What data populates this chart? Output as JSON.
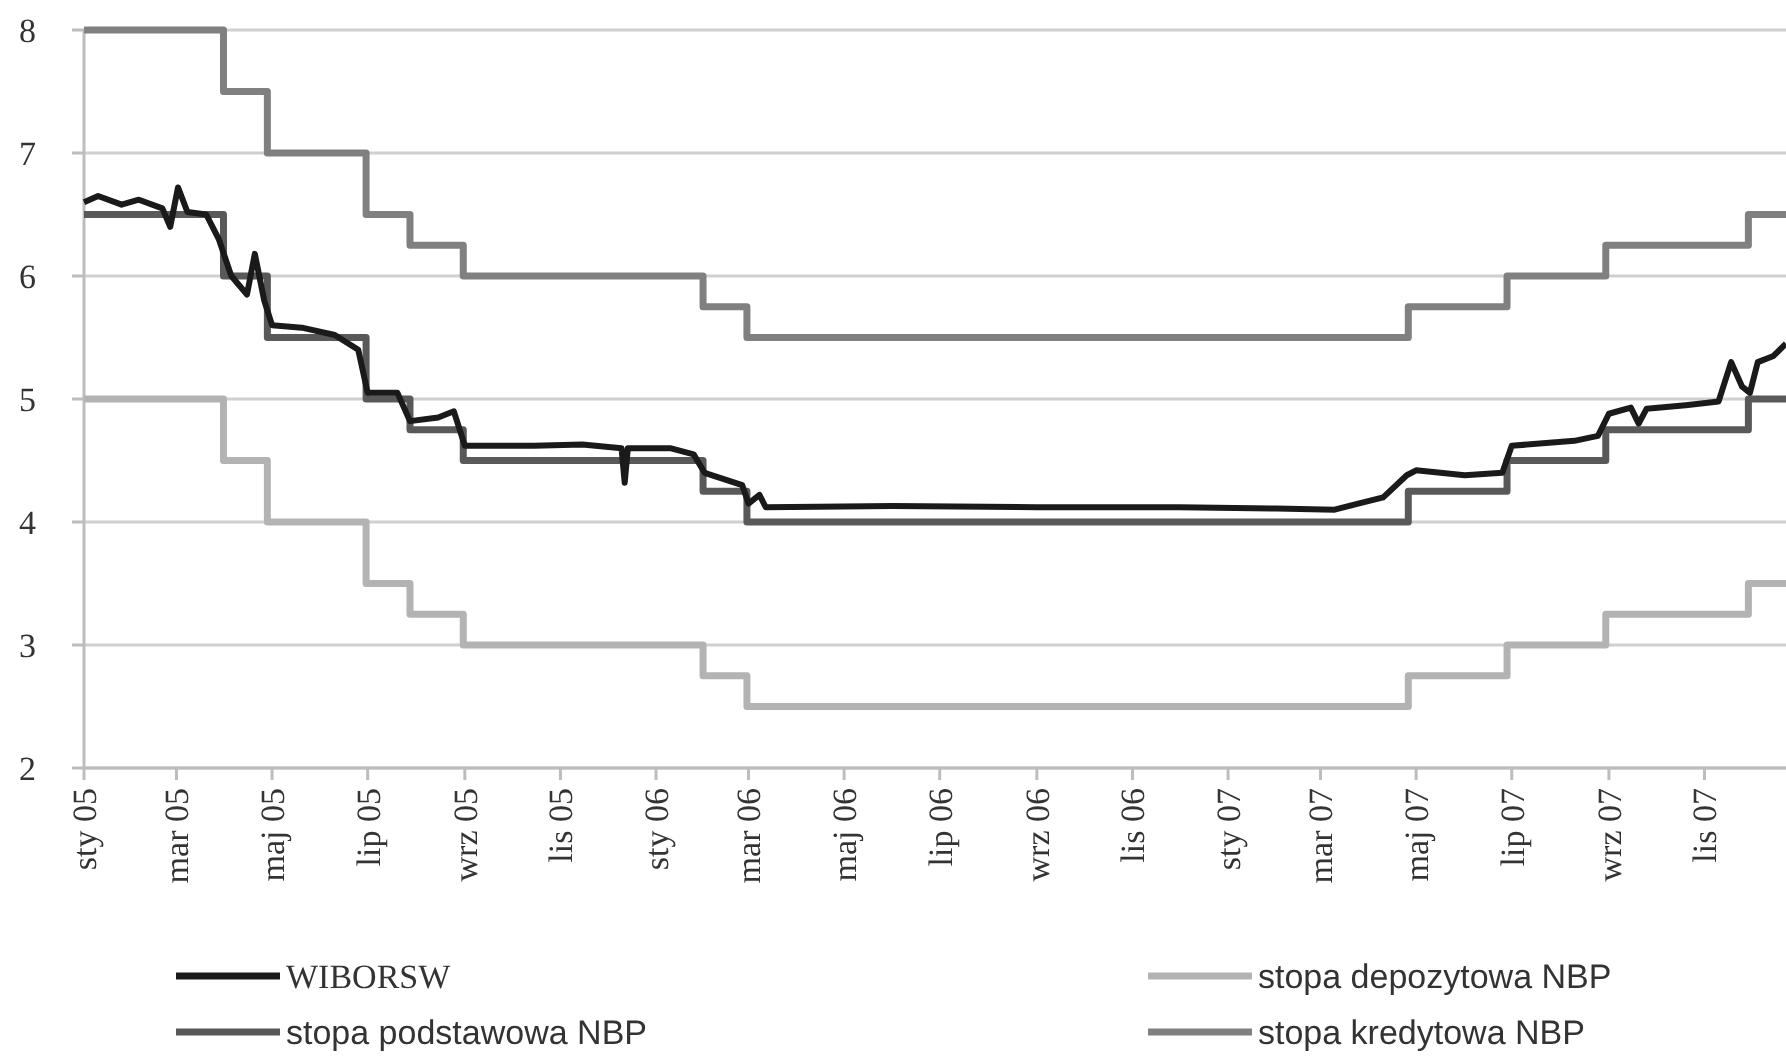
{
  "chart_data": {
    "type": "step",
    "xlim": [
      "2005-01-01",
      "2007-12-23"
    ],
    "ylim": [
      2,
      8
    ],
    "yticks": [
      2,
      3,
      4,
      5,
      6,
      7,
      8
    ],
    "xticks": [
      {
        "value": "2005-01-01",
        "label": "sty 05"
      },
      {
        "value": "2005-03-01",
        "label": "mar 05"
      },
      {
        "value": "2005-05-01",
        "label": "maj 05"
      },
      {
        "value": "2005-07-01",
        "label": "lip 05"
      },
      {
        "value": "2005-09-01",
        "label": "wrz 05"
      },
      {
        "value": "2005-11-01",
        "label": "lis 05"
      },
      {
        "value": "2006-01-01",
        "label": "sty 06"
      },
      {
        "value": "2006-03-01",
        "label": "mar 06"
      },
      {
        "value": "2006-05-01",
        "label": "maj 06"
      },
      {
        "value": "2006-07-01",
        "label": "lip 06"
      },
      {
        "value": "2006-09-01",
        "label": "wrz 06"
      },
      {
        "value": "2006-11-01",
        "label": "lis 06"
      },
      {
        "value": "2007-01-01",
        "label": "sty 07"
      },
      {
        "value": "2007-03-01",
        "label": "mar 07"
      },
      {
        "value": "2007-05-01",
        "label": "maj 07"
      },
      {
        "value": "2007-07-01",
        "label": "lip 07"
      },
      {
        "value": "2007-09-01",
        "label": "wrz 07"
      },
      {
        "value": "2007-11-01",
        "label": "lis 07"
      }
    ],
    "grid": "y",
    "legend": "bottom",
    "marker": "none",
    "line_style": "solid",
    "series": [
      {
        "name": "WIBORSW",
        "type": "line",
        "color": "#1a1a1a",
        "x": [
          "2005-01-01",
          "2005-01-10",
          "2005-01-25",
          "2005-02-05",
          "2005-02-20",
          "2005-02-25",
          "2005-03-02",
          "2005-03-08",
          "2005-03-20",
          "2005-03-28",
          "2005-04-05",
          "2005-04-15",
          "2005-04-20",
          "2005-04-26",
          "2005-05-01",
          "2005-05-20",
          "2005-06-10",
          "2005-06-25",
          "2005-07-01",
          "2005-07-20",
          "2005-07-28",
          "2005-08-15",
          "2005-08-25",
          "2005-09-01",
          "2005-10-15",
          "2005-11-15",
          "2005-12-10",
          "2005-12-12",
          "2005-12-14",
          "2006-01-10",
          "2006-01-25",
          "2006-02-01",
          "2006-02-25",
          "2006-03-01",
          "2006-03-08",
          "2006-03-12",
          "2006-06-01",
          "2006-09-01",
          "2006-12-01",
          "2007-02-01",
          "2007-03-10",
          "2007-03-25",
          "2007-04-10",
          "2007-04-25",
          "2007-05-01",
          "2007-06-01",
          "2007-06-25",
          "2007-07-01",
          "2007-08-10",
          "2007-08-25",
          "2007-09-01",
          "2007-09-15",
          "2007-09-20",
          "2007-09-25",
          "2007-10-20",
          "2007-11-10",
          "2007-11-18",
          "2007-11-25",
          "2007-11-30",
          "2007-12-05",
          "2007-12-15",
          "2007-12-23"
        ],
        "values": [
          6.6,
          6.65,
          6.58,
          6.62,
          6.55,
          6.4,
          6.72,
          6.52,
          6.5,
          6.3,
          6.0,
          5.85,
          6.18,
          5.8,
          5.6,
          5.58,
          5.52,
          5.4,
          5.05,
          5.05,
          4.82,
          4.85,
          4.9,
          4.62,
          4.62,
          4.63,
          4.6,
          4.32,
          4.6,
          4.6,
          4.55,
          4.4,
          4.3,
          4.15,
          4.22,
          4.12,
          4.13,
          4.12,
          4.12,
          4.11,
          4.1,
          4.15,
          4.2,
          4.38,
          4.42,
          4.38,
          4.4,
          4.62,
          4.66,
          4.7,
          4.88,
          4.93,
          4.8,
          4.92,
          4.95,
          4.98,
          5.3,
          5.1,
          5.05,
          5.3,
          5.35,
          5.45
        ]
      },
      {
        "name": "stopa depozytowa NBP",
        "color": "#b3b3b3",
        "x": [
          "2005-01-01",
          "2005-03-31",
          "2005-04-28",
          "2005-06-30",
          "2005-07-28",
          "2005-08-31",
          "2006-01-31",
          "2006-02-28",
          "2007-04-26",
          "2007-06-28",
          "2007-08-30",
          "2007-11-29",
          "2007-12-23"
        ],
        "values": [
          5,
          4.5,
          4,
          3.5,
          3.25,
          3,
          2.75,
          2.5,
          2.75,
          3,
          3.25,
          3.5,
          3.5
        ]
      },
      {
        "name": "stopa podstawowa NBP",
        "color": "#595959",
        "x": [
          "2005-01-01",
          "2005-03-31",
          "2005-04-28",
          "2005-06-30",
          "2005-07-28",
          "2005-08-31",
          "2006-01-31",
          "2006-02-28",
          "2007-04-26",
          "2007-06-28",
          "2007-08-30",
          "2007-11-29",
          "2007-12-23"
        ],
        "values": [
          6.5,
          6,
          5.5,
          5,
          4.75,
          4.5,
          4.25,
          4,
          4.25,
          4.5,
          4.75,
          5,
          5
        ]
      },
      {
        "name": "stopa kredytowa NBP",
        "color": "#808080",
        "x": [
          "2005-01-01",
          "2005-03-31",
          "2005-04-28",
          "2005-06-30",
          "2005-07-28",
          "2005-08-31",
          "2006-01-31",
          "2006-02-28",
          "2007-04-26",
          "2007-06-28",
          "2007-08-30",
          "2007-11-29",
          "2007-12-23"
        ],
        "values": [
          8,
          7.5,
          7,
          6.5,
          6.25,
          6,
          5.75,
          5.5,
          5.75,
          6,
          6.25,
          6.5,
          6.5
        ]
      }
    ]
  }
}
